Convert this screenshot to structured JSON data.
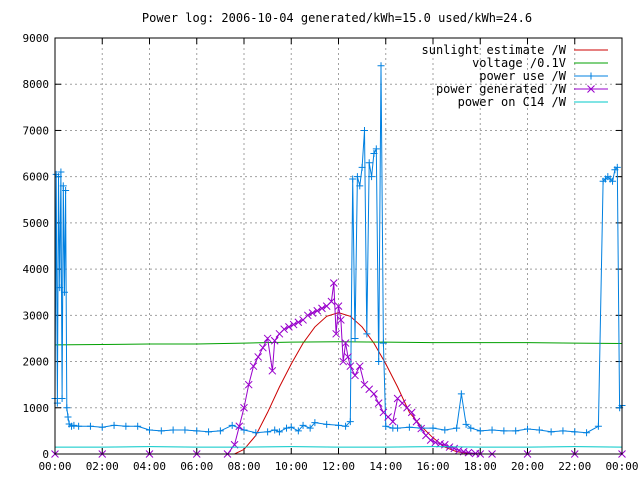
{
  "chart_data": {
    "type": "line",
    "title": "Power log: 2006-10-04 generated/kWh=15.0 used/kWh=24.6",
    "xlabel": "",
    "ylabel": "",
    "xlim": [
      0,
      24
    ],
    "ylim": [
      0,
      9000
    ],
    "grid": true,
    "legend_position": "top-right",
    "x_ticks": [
      "00:00",
      "02:00",
      "04:00",
      "06:00",
      "08:00",
      "10:00",
      "12:00",
      "14:00",
      "16:00",
      "18:00",
      "20:00",
      "22:00",
      "00:00"
    ],
    "y_ticks": [
      "0",
      "1000",
      "2000",
      "3000",
      "4000",
      "5000",
      "6000",
      "7000",
      "8000",
      "9000"
    ],
    "series": [
      {
        "name": "sunlight estimate /W",
        "color": "#cc0000",
        "marker": "none",
        "x": [
          7.6,
          8.0,
          8.5,
          9.0,
          9.5,
          10.0,
          10.5,
          11.0,
          11.5,
          12.0,
          12.5,
          13.0,
          13.5,
          14.0,
          14.5,
          15.0,
          15.5,
          16.0,
          16.5,
          17.0,
          17.5,
          18.0,
          18.4
        ],
        "y": [
          0,
          100,
          400,
          900,
          1450,
          1950,
          2400,
          2750,
          2980,
          3060,
          2980,
          2750,
          2400,
          1950,
          1450,
          900,
          600,
          350,
          150,
          50,
          10,
          0,
          0
        ]
      },
      {
        "name": "voltage /0.1V",
        "color": "#00a000",
        "marker": "none",
        "x": [
          0,
          2,
          4,
          6,
          8,
          10,
          12,
          14,
          16,
          18,
          20,
          22,
          24
        ],
        "y": [
          2360,
          2370,
          2380,
          2380,
          2400,
          2420,
          2430,
          2420,
          2410,
          2410,
          2410,
          2400,
          2390
        ]
      },
      {
        "name": "power use /W",
        "color": "#0080e0",
        "marker": "plus",
        "x": [
          0,
          0.05,
          0.1,
          0.15,
          0.2,
          0.25,
          0.3,
          0.35,
          0.4,
          0.45,
          0.5,
          0.55,
          0.6,
          0.7,
          0.8,
          1.0,
          1.5,
          2.0,
          2.5,
          3.0,
          3.5,
          4.0,
          4.5,
          5.0,
          5.5,
          6.0,
          6.5,
          7.0,
          7.5,
          8.0,
          8.5,
          9.0,
          9.3,
          9.5,
          9.8,
          10.0,
          10.3,
          10.5,
          10.8,
          11.0,
          11.5,
          12.0,
          12.3,
          12.5,
          12.6,
          12.7,
          12.8,
          12.9,
          13.0,
          13.1,
          13.2,
          13.3,
          13.4,
          13.5,
          13.6,
          13.7,
          13.8,
          13.9,
          14.0,
          14.3,
          14.5,
          15.0,
          15.5,
          16.0,
          16.5,
          17.0,
          17.2,
          17.4,
          17.6,
          18.0,
          18.5,
          19.0,
          19.5,
          20.0,
          20.5,
          21.0,
          21.5,
          22.0,
          22.5,
          23.0,
          23.2,
          23.3,
          23.4,
          23.5,
          23.6,
          23.7,
          23.8,
          23.9,
          24.0
        ],
        "y": [
          1200,
          6050,
          1100,
          6000,
          3600,
          6100,
          1200,
          5800,
          3500,
          5700,
          1000,
          800,
          650,
          600,
          620,
          600,
          600,
          580,
          620,
          600,
          600,
          520,
          500,
          520,
          520,
          500,
          480,
          500,
          620,
          520,
          460,
          480,
          520,
          480,
          560,
          580,
          500,
          620,
          560,
          680,
          640,
          620,
          600,
          700,
          5950,
          2500,
          6000,
          5800,
          6200,
          7000,
          2600,
          6300,
          6000,
          6500,
          6600,
          2000,
          8400,
          2400,
          600,
          560,
          560,
          580,
          560,
          560,
          520,
          560,
          1300,
          640,
          560,
          500,
          520,
          500,
          500,
          540,
          520,
          480,
          500,
          480,
          460,
          600,
          5900,
          5950,
          6000,
          5950,
          5900,
          6150,
          6200,
          1000,
          1050
        ]
      },
      {
        "name": "power generated /W",
        "color": "#9900cc",
        "marker": "cross",
        "x": [
          0,
          2,
          4,
          6,
          7.3,
          7.6,
          7.8,
          8.0,
          8.2,
          8.4,
          8.6,
          8.8,
          9.0,
          9.2,
          9.3,
          9.5,
          9.7,
          9.9,
          10.1,
          10.3,
          10.5,
          10.7,
          10.9,
          11.1,
          11.3,
          11.5,
          11.7,
          11.8,
          11.9,
          12.0,
          12.1,
          12.2,
          12.3,
          12.4,
          12.5,
          12.7,
          12.9,
          13.1,
          13.3,
          13.5,
          13.7,
          13.9,
          14.1,
          14.3,
          14.5,
          14.7,
          14.9,
          15.1,
          15.3,
          15.5,
          15.7,
          15.9,
          16.1,
          16.3,
          16.5,
          16.7,
          16.9,
          17.1,
          17.3,
          17.5,
          17.8,
          18.0,
          18.5,
          20,
          22,
          24
        ],
        "y": [
          0,
          0,
          0,
          0,
          0,
          200,
          600,
          1000,
          1500,
          1900,
          2100,
          2300,
          2500,
          1800,
          2450,
          2600,
          2700,
          2750,
          2800,
          2850,
          2900,
          3000,
          3050,
          3100,
          3150,
          3200,
          3300,
          3700,
          2600,
          3200,
          2900,
          2000,
          2400,
          2100,
          1900,
          1700,
          1900,
          1500,
          1400,
          1300,
          1100,
          900,
          800,
          700,
          1200,
          1100,
          1000,
          900,
          700,
          550,
          400,
          300,
          250,
          220,
          200,
          150,
          120,
          80,
          50,
          30,
          10,
          0,
          0,
          0,
          0,
          0
        ]
      },
      {
        "name": "power on C14 /W",
        "color": "#00c8c8",
        "marker": "none",
        "x": [
          0,
          2,
          4,
          6,
          8,
          10,
          12,
          14,
          16,
          18,
          20,
          22,
          24
        ],
        "y": [
          150,
          150,
          160,
          150,
          150,
          160,
          150,
          150,
          160,
          150,
          150,
          160,
          150
        ]
      }
    ]
  }
}
